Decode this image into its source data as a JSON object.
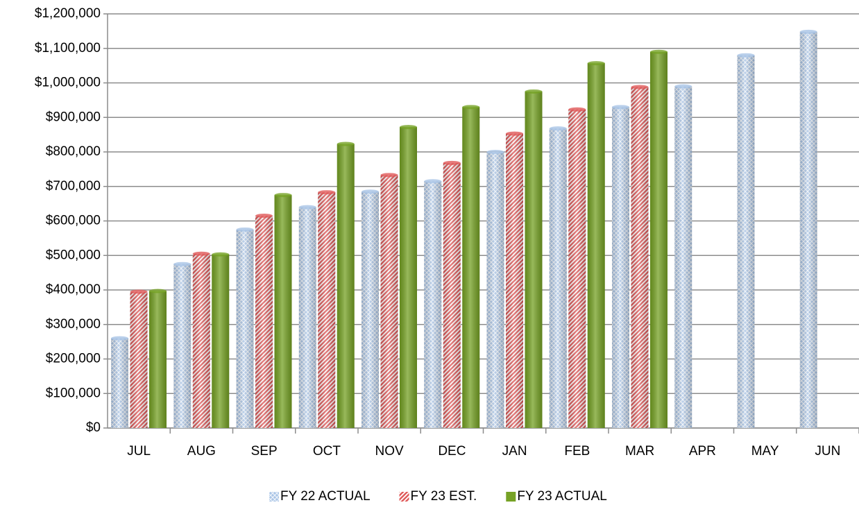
{
  "chart_data": {
    "type": "bar",
    "categories": [
      "JUL",
      "AUG",
      "SEP",
      "OCT",
      "NOV",
      "DEC",
      "JAN",
      "FEB",
      "MAR",
      "APR",
      "MAY",
      "JUN"
    ],
    "series": [
      {
        "name": "FY 22 ACTUAL",
        "color": "#a9c4e6",
        "values": [
          260000,
          475000,
          575000,
          640000,
          685000,
          715000,
          800000,
          868000,
          930000,
          990000,
          1080000,
          1148000
        ]
      },
      {
        "name": "FY 23 EST.",
        "color": "#e05a5a",
        "values": [
          395000,
          505000,
          615000,
          683000,
          733000,
          768000,
          853000,
          923000,
          988000,
          null,
          null,
          null
        ]
      },
      {
        "name": "FY 23 ACTUAL",
        "color": "#76a225",
        "values": [
          397000,
          503000,
          675000,
          823000,
          872000,
          930000,
          975000,
          1057000,
          1090000,
          null,
          null,
          null
        ]
      }
    ],
    "ylim": [
      0,
      1200000
    ],
    "yticks": [
      {
        "value": 0,
        "label": "$0"
      },
      {
        "value": 100000,
        "label": "$100,000"
      },
      {
        "value": 200000,
        "label": "$200,000"
      },
      {
        "value": 300000,
        "label": "$300,000"
      },
      {
        "value": 400000,
        "label": "$400,000"
      },
      {
        "value": 500000,
        "label": "$500,000"
      },
      {
        "value": 600000,
        "label": "$600,000"
      },
      {
        "value": 700000,
        "label": "$700,000"
      },
      {
        "value": 800000,
        "label": "$800,000"
      },
      {
        "value": 900000,
        "label": "$900,000"
      },
      {
        "value": 1000000,
        "label": "$1,000,000"
      },
      {
        "value": 1100000,
        "label": "$1,100,000"
      },
      {
        "value": 1200000,
        "label": "$1,200,000"
      }
    ],
    "grid": true,
    "legend": "bottom"
  }
}
